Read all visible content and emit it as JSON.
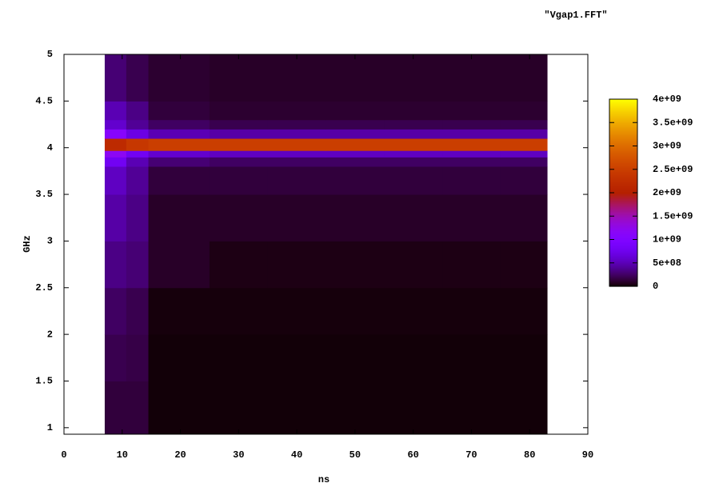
{
  "chart_data": {
    "type": "heatmap",
    "legend_title": "\"Vgap1.FFT\"",
    "xlabel": "ns",
    "ylabel": "GHz",
    "xlim": [
      0,
      90
    ],
    "xticks": [
      0,
      10,
      20,
      30,
      40,
      50,
      60,
      70,
      80,
      90
    ],
    "ylim": [
      0.93,
      5
    ],
    "yticks": [
      1,
      1.5,
      2,
      2.5,
      3,
      3.5,
      4,
      4.5,
      5
    ],
    "xbins": [
      7,
      10.7,
      14.5,
      25,
      35,
      45,
      55,
      65,
      75,
      83
    ],
    "ybins": [
      0.93,
      1.5,
      2,
      2.5,
      3,
      3.5,
      3.8,
      3.9,
      3.97,
      4.1,
      4.2,
      4.3,
      4.5,
      5
    ],
    "values": [
      [
        150000000.0,
        150000000.0,
        20000000.0,
        20000000.0,
        20000000.0,
        20000000.0,
        20000000.0,
        20000000.0,
        20000000.0
      ],
      [
        200000000.0,
        180000000.0,
        20000000.0,
        20000000.0,
        20000000.0,
        20000000.0,
        20000000.0,
        20000000.0,
        20000000.0
      ],
      [
        250000000.0,
        200000000.0,
        30000000.0,
        30000000.0,
        30000000.0,
        30000000.0,
        30000000.0,
        30000000.0,
        30000000.0
      ],
      [
        350000000.0,
        300000000.0,
        100000000.0,
        50000000.0,
        50000000.0,
        50000000.0,
        50000000.0,
        50000000.0,
        50000000.0
      ],
      [
        450000000.0,
        350000000.0,
        100000000.0,
        100000000.0,
        100000000.0,
        100000000.0,
        100000000.0,
        100000000.0,
        100000000.0
      ],
      [
        550000000.0,
        400000000.0,
        150000000.0,
        150000000.0,
        150000000.0,
        150000000.0,
        150000000.0,
        150000000.0,
        150000000.0
      ],
      [
        800000000.0,
        500000000.0,
        300000000.0,
        250000000.0,
        250000000.0,
        250000000.0,
        250000000.0,
        250000000.0,
        250000000.0
      ],
      [
        1200000000.0,
        800000000.0,
        600000000.0,
        550000000.0,
        550000000.0,
        550000000.0,
        550000000.0,
        550000000.0,
        550000000.0
      ],
      [
        2200000000.0,
        2400000000.0,
        2500000000.0,
        2500000000.0,
        2500000000.0,
        2500000000.0,
        2500000000.0,
        2500000000.0,
        2500000000.0
      ],
      [
        1100000000.0,
        700000000.0,
        500000000.0,
        450000000.0,
        450000000.0,
        450000000.0,
        450000000.0,
        450000000.0,
        450000000.0
      ],
      [
        600000000.0,
        400000000.0,
        250000000.0,
        200000000.0,
        200000000.0,
        200000000.0,
        200000000.0,
        200000000.0,
        200000000.0
      ],
      [
        500000000.0,
        350000000.0,
        150000000.0,
        120000000.0,
        120000000.0,
        120000000.0,
        120000000.0,
        120000000.0,
        120000000.0
      ],
      [
        300000000.0,
        200000000.0,
        120000000.0,
        100000000.0,
        100000000.0,
        100000000.0,
        100000000.0,
        100000000.0,
        100000000.0
      ]
    ],
    "zlim": [
      0,
      4000000000.0
    ],
    "zticks": [
      0,
      {
        "value": 500000000.0,
        "label": "5e+08"
      },
      {
        "value": 1000000000.0,
        "label": "1e+09"
      },
      {
        "value": 1500000000.0,
        "label": "1.5e+09"
      },
      {
        "value": 2000000000.0,
        "label": "2e+09"
      },
      {
        "value": 2500000000.0,
        "label": "2.5e+09"
      },
      {
        "value": 3000000000.0,
        "label": "3e+09"
      },
      {
        "value": 3500000000.0,
        "label": "3.5e+09"
      },
      {
        "value": 4000000000.0,
        "label": "4e+09"
      }
    ]
  }
}
